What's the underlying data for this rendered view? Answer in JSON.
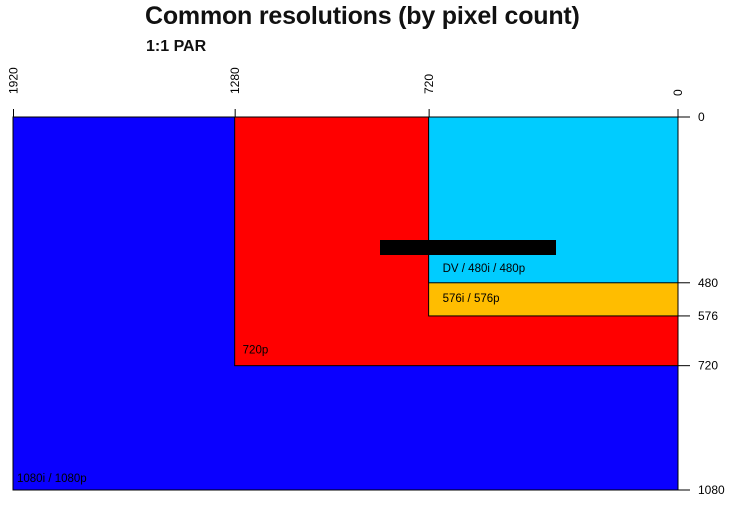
{
  "title": "Common resolutions (by pixel count)",
  "subtitle": "1:1 PAR",
  "colors": {
    "hd1080": "#0a00ff",
    "hd720": "#ff0000",
    "sd480": "#00ccff",
    "sd576": "#ffbd00",
    "redaction": "#000000",
    "axis": "#000000"
  },
  "chart_data": {
    "type": "area",
    "x_axis": {
      "reversed": true,
      "range": [
        0,
        1920
      ],
      "ticks": [
        1920,
        1280,
        720,
        0
      ]
    },
    "y_axis": {
      "reversed": true,
      "range": [
        0,
        1080
      ],
      "ticks": [
        0,
        480,
        576,
        720,
        1080
      ]
    },
    "regions": [
      {
        "label": "1080i / 1080p",
        "width": 1920,
        "height": 1080,
        "color": "#0a00ff"
      },
      {
        "label": "720p",
        "width": 1280,
        "height": 720,
        "color": "#ff0000"
      },
      {
        "label": "576i / 576p",
        "width": 720,
        "height": 576,
        "color": "#ffbd00"
      },
      {
        "label": "DV / 480i / 480p",
        "width": 720,
        "height": 480,
        "color": "#00ccff"
      }
    ],
    "x_tick_labels": [
      "1920",
      "1280",
      "720",
      "0"
    ],
    "y_tick_labels": [
      "0",
      "480",
      "576",
      "720",
      "1080"
    ]
  }
}
